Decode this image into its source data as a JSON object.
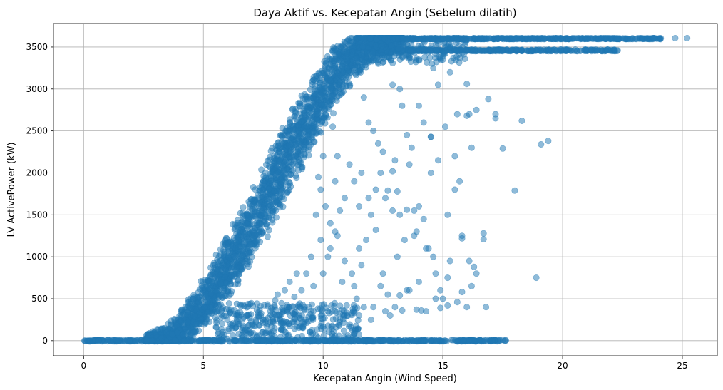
{
  "colors": {
    "accent": "#1f77b4",
    "grid": "#b0b0b0",
    "axis": "#000000"
  },
  "chart_data": {
    "type": "scatter",
    "title": "Daya Aktif vs. Kecepatan Angin (Sebelum dilatih)",
    "xlabel": "Kecepatan Angin (Wind Speed)",
    "ylabel": "LV ActivePower (kW)",
    "xlim": [
      -1.26,
      26.46
    ],
    "ylim": [
      -180,
      3780
    ],
    "xticks": [
      0,
      5,
      10,
      15,
      20,
      25
    ],
    "yticks": [
      0,
      500,
      1000,
      1500,
      2000,
      2500,
      3000,
      3500
    ],
    "grid": true,
    "marker_alpha": 0.5,
    "series": [
      {
        "name": "LV ActivePower",
        "color": "#1f77b4",
        "curve": {
          "x": [
            0,
            3,
            3.5,
            4,
            5,
            6,
            7,
            8,
            9,
            10,
            11,
            12,
            12.5,
            13,
            25.2
          ],
          "y": [
            0,
            0,
            40,
            100,
            430,
            850,
            1350,
            1900,
            2450,
            2950,
            3350,
            3550,
            3600,
            3606,
            3606
          ]
        },
        "rated_band": {
          "x_start": 13,
          "x_end": 24.1,
          "y_upper": 3606,
          "y_lower": 3460,
          "lower_x_end": 22.3
        },
        "zero_band": {
          "x_start": 0,
          "x_end": 17.7,
          "y": 0
        },
        "points": [
          [
            25.2,
            3606
          ],
          [
            24.7,
            3606
          ],
          [
            24.1,
            3606
          ],
          [
            23.8,
            3606
          ],
          [
            22.3,
            3460
          ],
          [
            21.9,
            3460
          ],
          [
            17.5,
            2290
          ],
          [
            17.2,
            2700
          ],
          [
            17.2,
            2650
          ],
          [
            16.9,
            2880
          ],
          [
            16.7,
            1280
          ],
          [
            16.7,
            1210
          ],
          [
            16.8,
            400
          ],
          [
            16.1,
            2700
          ],
          [
            16.0,
            2680
          ],
          [
            15.6,
            2700
          ],
          [
            15.5,
            2200
          ],
          [
            15.7,
            1900
          ],
          [
            15.5,
            1800
          ],
          [
            15.2,
            1500
          ],
          [
            15.3,
            950
          ],
          [
            15.2,
            750
          ],
          [
            15.0,
            500
          ],
          [
            14.8,
            3050
          ],
          [
            14.6,
            3250
          ],
          [
            14.5,
            2430
          ],
          [
            14.5,
            2430
          ],
          [
            16.0,
            3060
          ],
          [
            16.2,
            2300
          ],
          [
            16.4,
            2750
          ],
          [
            15.8,
            1250
          ],
          [
            15.8,
            1220
          ],
          [
            16.1,
            950
          ],
          [
            16.3,
            880
          ],
          [
            16.4,
            800
          ],
          [
            16.2,
            650
          ],
          [
            16.0,
            400
          ],
          [
            15.8,
            580
          ],
          [
            19.1,
            2340
          ],
          [
            19.4,
            2380
          ],
          [
            18.3,
            2620
          ],
          [
            18.0,
            1790
          ],
          [
            18.9,
            750
          ],
          [
            14.0,
            1600
          ],
          [
            13.8,
            1550
          ],
          [
            13.5,
            1560
          ],
          [
            13.2,
            1500
          ],
          [
            13.9,
            1300
          ],
          [
            13.4,
            1200
          ],
          [
            13.1,
            1000
          ],
          [
            13.5,
            600
          ],
          [
            13.2,
            540
          ],
          [
            12.8,
            300
          ],
          [
            12.5,
            800
          ],
          [
            12.2,
            1320
          ],
          [
            12.0,
            1500
          ],
          [
            12.6,
            1700
          ],
          [
            12.4,
            2000
          ],
          [
            12.1,
            2500
          ],
          [
            13.7,
            2300
          ],
          [
            13.5,
            2450
          ],
          [
            13.3,
            2800
          ],
          [
            14.0,
            2800
          ],
          [
            14.2,
            2600
          ],
          [
            14.5,
            2000
          ],
          [
            14.2,
            1450
          ],
          [
            14.4,
            1100
          ],
          [
            14.6,
            1000
          ],
          [
            14.7,
            800
          ],
          [
            14.9,
            600
          ],
          [
            14.7,
            500
          ],
          [
            14.3,
            350
          ],
          [
            14.1,
            360
          ],
          [
            13.9,
            370
          ],
          [
            13.6,
            600
          ],
          [
            14.4,
            3600
          ],
          [
            13.0,
            2150
          ],
          [
            12.9,
            2020
          ],
          [
            12.7,
            1790
          ],
          [
            13.1,
            1780
          ],
          [
            12.3,
            2350
          ],
          [
            11.9,
            2600
          ],
          [
            11.7,
            2900
          ],
          [
            11.8,
            1200
          ],
          [
            11.5,
            1100
          ],
          [
            11.6,
            900
          ],
          [
            11.2,
            800
          ],
          [
            11.4,
            500
          ],
          [
            11.0,
            300
          ],
          [
            10.8,
            700
          ],
          [
            10.6,
            1250
          ],
          [
            10.9,
            1700
          ],
          [
            10.6,
            2200
          ],
          [
            10.4,
            2550
          ],
          [
            10.0,
            2200
          ],
          [
            9.8,
            1950
          ],
          [
            9.7,
            1500
          ],
          [
            9.9,
            1200
          ],
          [
            10.2,
            1000
          ],
          [
            10.0,
            800
          ],
          [
            9.6,
            650
          ],
          [
            9.4,
            400
          ],
          [
            9.0,
            300
          ],
          [
            8.8,
            520
          ],
          [
            8.5,
            400
          ],
          [
            8.2,
            300
          ],
          [
            8.0,
            480
          ],
          [
            7.8,
            350
          ],
          [
            7.6,
            250
          ],
          [
            7.3,
            300
          ],
          [
            7.0,
            230
          ],
          [
            6.8,
            300
          ],
          [
            6.5,
            200
          ],
          [
            6.2,
            150
          ],
          [
            6.0,
            250
          ],
          [
            5.8,
            100
          ],
          [
            9.5,
            1000
          ],
          [
            9.3,
            800
          ],
          [
            9.1,
            600
          ],
          [
            8.9,
            800
          ],
          [
            8.6,
            700
          ],
          [
            8.4,
            600
          ],
          [
            8.1,
            550
          ],
          [
            10.3,
            1400
          ],
          [
            10.1,
            1600
          ],
          [
            9.9,
            1800
          ],
          [
            10.5,
            1900
          ],
          [
            11.1,
            2100
          ],
          [
            11.3,
            1900
          ],
          [
            11.6,
            2000
          ],
          [
            11.9,
            1700
          ],
          [
            12.2,
            1800
          ],
          [
            11.5,
            1600
          ],
          [
            10.7,
            1550
          ],
          [
            10.5,
            1300
          ],
          [
            10.3,
            1100
          ],
          [
            10.9,
            950
          ],
          [
            11.3,
            650
          ],
          [
            11.7,
            400
          ],
          [
            12.1,
            400
          ],
          [
            12.6,
            350
          ],
          [
            13.0,
            400
          ],
          [
            12.7,
            550
          ],
          [
            12.4,
            650
          ],
          [
            7.5,
            250
          ],
          [
            8.3,
            200
          ],
          [
            9.2,
            200
          ],
          [
            10.2,
            350
          ],
          [
            10.7,
            250
          ],
          [
            11.5,
            300
          ],
          [
            12.0,
            250
          ],
          [
            13.3,
            360
          ],
          [
            14.9,
            390
          ],
          [
            15.2,
            420
          ],
          [
            15.6,
            460
          ],
          [
            14.0,
            700
          ],
          [
            14.3,
            1100
          ],
          [
            13.8,
            1250
          ],
          [
            12.9,
            1550
          ],
          [
            12.5,
            2250
          ],
          [
            13.6,
            2100
          ],
          [
            14.8,
            2150
          ],
          [
            15.1,
            2550
          ],
          [
            13.2,
            3000
          ],
          [
            12.9,
            3050
          ],
          [
            15.3,
            3200
          ],
          [
            14.0,
            3350
          ],
          [
            13.6,
            3400
          ],
          [
            15.0,
            3350
          ]
        ]
      }
    ]
  }
}
